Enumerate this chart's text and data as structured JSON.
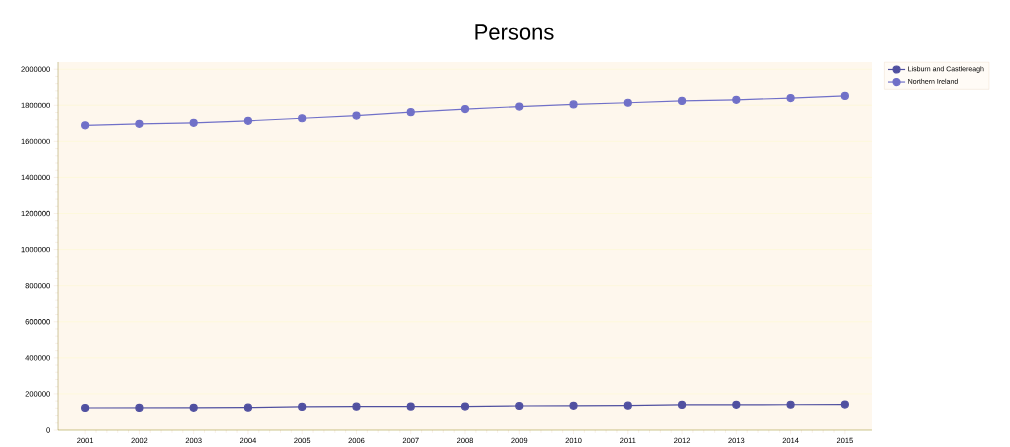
{
  "chart_data": {
    "type": "line",
    "title": "Persons",
    "categories": [
      "2001",
      "2002",
      "2003",
      "2004",
      "2005",
      "2006",
      "2007",
      "2008",
      "2009",
      "2010",
      "2011",
      "2012",
      "2013",
      "2014",
      "2015"
    ],
    "series": [
      {
        "name": "Lisburn and Castlereagh",
        "color": "#5050a0",
        "values": [
          122000,
          122500,
          123000,
          123500,
          128000,
          129000,
          129500,
          130000,
          133000,
          134000,
          134500,
          139000,
          139500,
          140000,
          141000
        ]
      },
      {
        "name": "Northern Ireland",
        "color": "#7070c8",
        "values": [
          1689000,
          1697000,
          1703000,
          1714000,
          1728000,
          1743000,
          1762000,
          1779000,
          1793000,
          1805000,
          1814000,
          1824000,
          1830000,
          1840000,
          1852000
        ]
      }
    ],
    "ylim": [
      0,
      2040000
    ],
    "yticks": [
      0,
      200000,
      400000,
      600000,
      800000,
      1000000,
      1200000,
      1400000,
      1600000,
      1800000,
      2000000
    ],
    "grid": "y",
    "legend": "top right",
    "marker": "circle",
    "line_style": "solid"
  }
}
